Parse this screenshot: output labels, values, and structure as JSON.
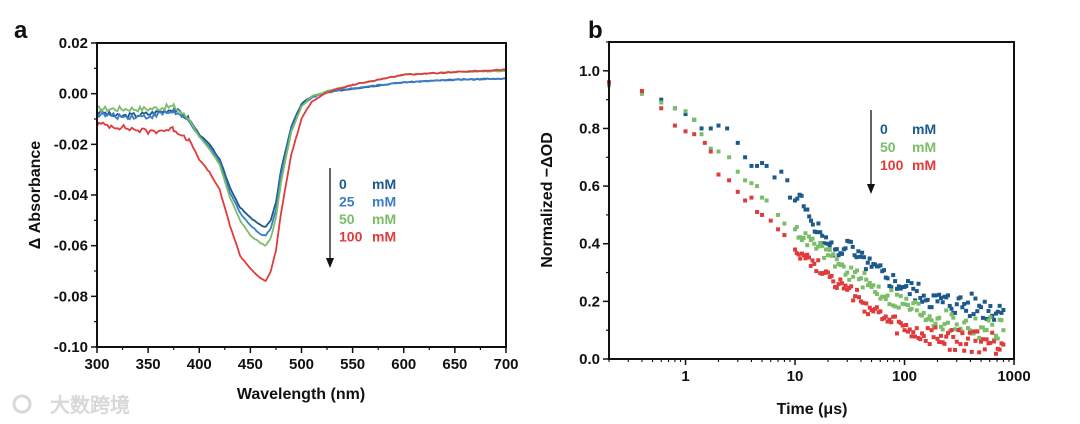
{
  "watermark": "大数跨境",
  "chart_data": [
    {
      "panel_label": "a",
      "type": "line",
      "xlabel": "Wavelength (nm)",
      "ylabel": "Δ Absorbance",
      "xlim": [
        300,
        700
      ],
      "ylim": [
        -0.1,
        0.02
      ],
      "xticks": [
        "300",
        "350",
        "400",
        "450",
        "500",
        "550",
        "600",
        "650",
        "700"
      ],
      "yticks": [
        "0.02",
        "0.00",
        "-0.02",
        "-0.04",
        "-0.06",
        "-0.08",
        "-0.10"
      ],
      "legend": {
        "placement": "center-right",
        "arrow": "down"
      },
      "series": [
        {
          "name": "0",
          "unit": "mM",
          "color": "#1d5a8c",
          "points": [
            [
              300,
              -0.007
            ],
            [
              320,
              -0.009
            ],
            [
              350,
              -0.008
            ],
            [
              375,
              -0.006
            ],
            [
              390,
              -0.01
            ],
            [
              400,
              -0.016
            ],
            [
              410,
              -0.02
            ],
            [
              420,
              -0.026
            ],
            [
              430,
              -0.037
            ],
            [
              440,
              -0.045
            ],
            [
              450,
              -0.049
            ],
            [
              460,
              -0.052
            ],
            [
              465,
              -0.0525
            ],
            [
              470,
              -0.05
            ],
            [
              475,
              -0.043
            ],
            [
              480,
              -0.03
            ],
            [
              490,
              -0.013
            ],
            [
              500,
              -0.004
            ],
            [
              510,
              -0.001
            ],
            [
              525,
              0.0005
            ],
            [
              550,
              0.002
            ],
            [
              600,
              0.0045
            ],
            [
              650,
              0.0055
            ],
            [
              700,
              0.006
            ]
          ]
        },
        {
          "name": "25",
          "unit": "mM",
          "color": "#3b7ec6",
          "points": [
            [
              300,
              -0.008
            ],
            [
              320,
              -0.009
            ],
            [
              350,
              -0.009
            ],
            [
              375,
              -0.007
            ],
            [
              390,
              -0.011
            ],
            [
              400,
              -0.017
            ],
            [
              410,
              -0.021
            ],
            [
              420,
              -0.027
            ],
            [
              430,
              -0.039
            ],
            [
              440,
              -0.047
            ],
            [
              450,
              -0.052
            ],
            [
              460,
              -0.0555
            ],
            [
              465,
              -0.056
            ],
            [
              470,
              -0.053
            ],
            [
              475,
              -0.046
            ],
            [
              480,
              -0.032
            ],
            [
              490,
              -0.014
            ],
            [
              500,
              -0.005
            ],
            [
              510,
              -0.0015
            ],
            [
              525,
              0.0005
            ],
            [
              550,
              0.0022
            ],
            [
              600,
              0.0045
            ],
            [
              650,
              0.0055
            ],
            [
              700,
              0.006
            ]
          ]
        },
        {
          "name": "50",
          "unit": "mM",
          "color": "#7cbd69",
          "points": [
            [
              300,
              -0.006
            ],
            [
              320,
              -0.006
            ],
            [
              350,
              -0.006
            ],
            [
              375,
              -0.005
            ],
            [
              390,
              -0.01
            ],
            [
              400,
              -0.017
            ],
            [
              410,
              -0.022
            ],
            [
              420,
              -0.028
            ],
            [
              430,
              -0.041
            ],
            [
              440,
              -0.05
            ],
            [
              450,
              -0.056
            ],
            [
              460,
              -0.059
            ],
            [
              465,
              -0.06
            ],
            [
              470,
              -0.057
            ],
            [
              475,
              -0.049
            ],
            [
              480,
              -0.035
            ],
            [
              490,
              -0.015
            ],
            [
              500,
              -0.005
            ],
            [
              510,
              -0.001
            ],
            [
              525,
              0.001
            ],
            [
              550,
              0.0035
            ],
            [
              600,
              0.0075
            ],
            [
              650,
              0.0085
            ],
            [
              700,
              0.009
            ]
          ]
        },
        {
          "name": "100",
          "unit": "mM",
          "color": "#e03b3c",
          "points": [
            [
              300,
              -0.012
            ],
            [
              320,
              -0.013
            ],
            [
              350,
              -0.015
            ],
            [
              375,
              -0.014
            ],
            [
              390,
              -0.018
            ],
            [
              400,
              -0.026
            ],
            [
              410,
              -0.031
            ],
            [
              420,
              -0.038
            ],
            [
              430,
              -0.052
            ],
            [
              440,
              -0.064
            ],
            [
              450,
              -0.069
            ],
            [
              460,
              -0.073
            ],
            [
              465,
              -0.074
            ],
            [
              470,
              -0.07
            ],
            [
              475,
              -0.062
            ],
            [
              480,
              -0.047
            ],
            [
              490,
              -0.024
            ],
            [
              500,
              -0.01
            ],
            [
              510,
              -0.003
            ],
            [
              525,
              0.0005
            ],
            [
              550,
              0.0035
            ],
            [
              600,
              0.0075
            ],
            [
              650,
              0.0085
            ],
            [
              700,
              0.0095
            ]
          ]
        }
      ]
    },
    {
      "panel_label": "b",
      "type": "scatter",
      "xlabel": "Time (μs)",
      "ylabel": "Normalized −ΔOD",
      "xscale": "log",
      "xlim": [
        0.2,
        1000
      ],
      "ylim": [
        0,
        1.1
      ],
      "xticks": [
        "1",
        "10",
        "100",
        "1000"
      ],
      "yticks": [
        "0.0",
        "0.2",
        "0.4",
        "0.6",
        "0.8",
        "1.0"
      ],
      "legend": {
        "placement": "top-right",
        "arrow": "down"
      },
      "series": [
        {
          "name": "0",
          "unit": "mM",
          "color": "#1d5a8c",
          "points": [
            [
              0.2,
              0.96
            ],
            [
              0.4,
              0.93
            ],
            [
              0.6,
              0.9
            ],
            [
              0.8,
              0.87
            ],
            [
              1,
              0.85
            ],
            [
              1.2,
              0.83
            ],
            [
              1.4,
              0.8
            ],
            [
              1.7,
              0.8
            ],
            [
              2,
              0.81
            ],
            [
              2.4,
              0.8
            ],
            [
              3,
              0.75
            ],
            [
              3.5,
              0.7
            ],
            [
              4,
              0.67
            ],
            [
              4.5,
              0.67
            ],
            [
              5,
              0.68
            ],
            [
              5.5,
              0.67
            ],
            [
              6.5,
              0.63
            ],
            [
              7.5,
              0.65
            ],
            [
              8.5,
              0.62
            ],
            [
              9,
              0.56
            ],
            [
              10,
              0.55
            ],
            [
              11,
              0.57
            ],
            [
              12,
              0.53
            ],
            [
              14,
              0.48
            ],
            [
              17,
              0.44
            ],
            [
              20,
              0.4
            ],
            [
              25,
              0.36
            ],
            [
              30,
              0.41
            ],
            [
              35,
              0.36
            ],
            [
              50,
              0.32
            ],
            [
              70,
              0.28
            ],
            [
              100,
              0.25
            ],
            [
              150,
              0.22
            ],
            [
              200,
              0.2
            ],
            [
              300,
              0.19
            ],
            [
              500,
              0.18
            ],
            [
              800,
              0.17
            ]
          ]
        },
        {
          "name": "50",
          "unit": "mM",
          "color": "#7cbd69",
          "points": [
            [
              0.2,
              0.95
            ],
            [
              0.4,
              0.92
            ],
            [
              0.6,
              0.89
            ],
            [
              0.8,
              0.87
            ],
            [
              1,
              0.86
            ],
            [
              1.2,
              0.83
            ],
            [
              1.4,
              0.78
            ],
            [
              1.7,
              0.73
            ],
            [
              2,
              0.72
            ],
            [
              2.5,
              0.7
            ],
            [
              3,
              0.65
            ],
            [
              3.5,
              0.62
            ],
            [
              4,
              0.61
            ],
            [
              4.5,
              0.6
            ],
            [
              5,
              0.56
            ],
            [
              5.5,
              0.55
            ],
            [
              7,
              0.5
            ],
            [
              8,
              0.47
            ],
            [
              10,
              0.45
            ],
            [
              12,
              0.42
            ],
            [
              15,
              0.4
            ],
            [
              20,
              0.36
            ],
            [
              25,
              0.33
            ],
            [
              30,
              0.3
            ],
            [
              40,
              0.28
            ],
            [
              50,
              0.25
            ],
            [
              70,
              0.22
            ],
            [
              100,
              0.19
            ],
            [
              150,
              0.16
            ],
            [
              200,
              0.14
            ],
            [
              300,
              0.12
            ],
            [
              500,
              0.11
            ],
            [
              800,
              0.1
            ]
          ]
        },
        {
          "name": "100",
          "unit": "mM",
          "color": "#e03b3c",
          "points": [
            [
              0.2,
              0.96
            ],
            [
              0.4,
              0.93
            ],
            [
              0.6,
              0.87
            ],
            [
              0.8,
              0.81
            ],
            [
              1,
              0.79
            ],
            [
              1.2,
              0.78
            ],
            [
              1.5,
              0.75
            ],
            [
              1.7,
              0.72
            ],
            [
              2,
              0.64
            ],
            [
              2.5,
              0.62
            ],
            [
              3,
              0.58
            ],
            [
              3.5,
              0.55
            ],
            [
              4,
              0.56
            ],
            [
              4.5,
              0.51
            ],
            [
              5,
              0.5
            ],
            [
              6,
              0.48
            ],
            [
              7,
              0.45
            ],
            [
              8,
              0.43
            ],
            [
              10,
              0.38
            ],
            [
              12,
              0.36
            ],
            [
              15,
              0.33
            ],
            [
              20,
              0.3
            ],
            [
              25,
              0.26
            ],
            [
              30,
              0.24
            ],
            [
              40,
              0.2
            ],
            [
              50,
              0.17
            ],
            [
              70,
              0.13
            ],
            [
              100,
              0.1
            ],
            [
              150,
              0.08
            ],
            [
              200,
              0.07
            ],
            [
              300,
              0.06
            ],
            [
              500,
              0.06
            ],
            [
              800,
              0.05
            ]
          ]
        }
      ]
    }
  ]
}
